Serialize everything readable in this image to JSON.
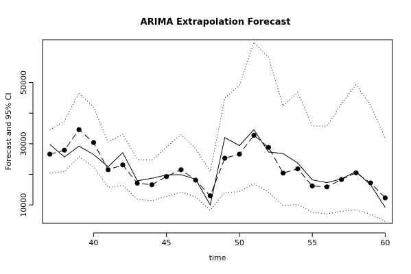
{
  "chart_data": {
    "type": "line",
    "title": "ARIMA Extrapolation Forecast",
    "xlabel": "time",
    "ylabel": "Forecast and 95% CI",
    "xlim": [
      36.5,
      60.5
    ],
    "ylim": [
      4000,
      64000
    ],
    "x_ticks": [
      40,
      45,
      50,
      55,
      60
    ],
    "y_ticks": [
      10000,
      30000,
      50000
    ],
    "grid": false,
    "legend": "none",
    "x": [
      37,
      38,
      39,
      40,
      41,
      42,
      43,
      44,
      45,
      46,
      47,
      48,
      49,
      50,
      51,
      52,
      53,
      54,
      55,
      56,
      57,
      58,
      59,
      60
    ],
    "series": [
      {
        "style": "solid",
        "values": [
          29800,
          25700,
          29200,
          26500,
          22500,
          27100,
          17900,
          18700,
          19800,
          19900,
          18400,
          10000,
          32000,
          29400,
          34600,
          27300,
          26800,
          23700,
          18200,
          17300,
          18500,
          20900,
          16600,
          9200
        ]
      },
      {
        "style": "dashed-points",
        "values": [
          26600,
          27900,
          34600,
          30400,
          21500,
          23100,
          17100,
          16600,
          19300,
          21500,
          18100,
          13000,
          25300,
          26600,
          32800,
          28800,
          20400,
          21800,
          16200,
          15900,
          18300,
          20500,
          17200,
          12300
        ]
      },
      {
        "style": "dotted",
        "values": [
          34500,
          37400,
          46600,
          42000,
          30500,
          33100,
          24900,
          24700,
          28900,
          33000,
          28400,
          20900,
          45000,
          49000,
          63200,
          58200,
          42300,
          46800,
          35800,
          35800,
          43000,
          49300,
          42500,
          31800
        ]
      },
      {
        "style": "dotted",
        "values": [
          20400,
          20900,
          25800,
          22400,
          15800,
          16300,
          11900,
          11400,
          12800,
          14200,
          12600,
          8300,
          14000,
          14400,
          16900,
          14200,
          9800,
          10200,
          7600,
          7100,
          7900,
          8400,
          7000,
          4600
        ]
      }
    ]
  }
}
